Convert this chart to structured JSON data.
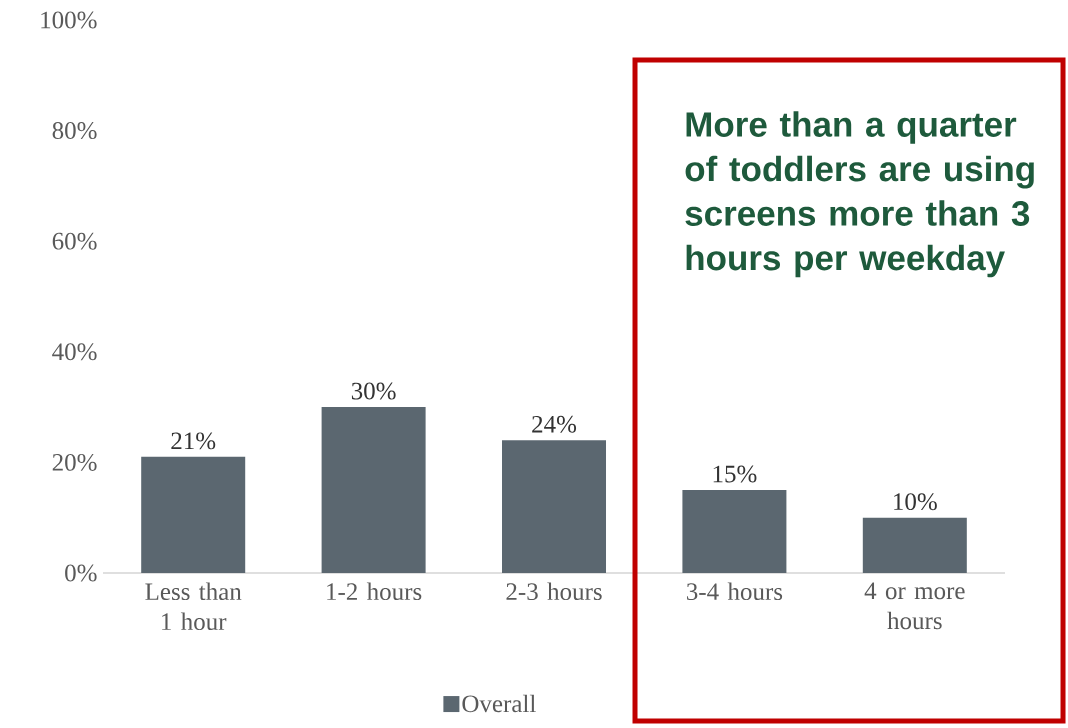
{
  "chart_data": {
    "type": "bar",
    "categories": [
      "Less than 1 hour",
      "1-2 hours",
      "2-3 hours",
      "3-4 hours",
      "4 or more hours"
    ],
    "series": [
      {
        "name": "Overall",
        "color": "#5b6770",
        "values": [
          21,
          30,
          24,
          15,
          10
        ],
        "value_labels": [
          "21%",
          "30%",
          "24%",
          "15%",
          "10%"
        ]
      }
    ],
    "ylim": [
      0,
      100
    ],
    "yticks": [
      {
        "value": 0,
        "label": "0%"
      },
      {
        "value": 20,
        "label": "20%"
      },
      {
        "value": 40,
        "label": "40%"
      },
      {
        "value": 60,
        "label": "60%"
      },
      {
        "value": 80,
        "label": "80%"
      },
      {
        "value": 100,
        "label": "100%"
      }
    ],
    "legend": "bottom",
    "annotations": [
      "More than a quarter of toddlers are using screens more than 3 hours per weekday"
    ]
  }
}
